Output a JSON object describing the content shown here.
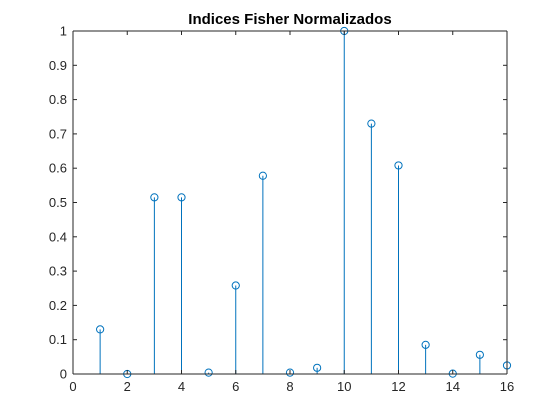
{
  "chart_data": {
    "type": "scatter",
    "style": "stem",
    "title": "Indices Fisher Normalizados",
    "xlabel": "",
    "ylabel": "",
    "xlim": [
      0,
      16
    ],
    "ylim": [
      0,
      1
    ],
    "xticks": [
      0,
      2,
      4,
      6,
      8,
      10,
      12,
      14,
      16
    ],
    "yticks": [
      0,
      0.1,
      0.2,
      0.3,
      0.4,
      0.5,
      0.6,
      0.7,
      0.8,
      0.9,
      1
    ],
    "grid": false,
    "legend": "none",
    "marker": "circle",
    "color": "#0072BD",
    "x": [
      1,
      2,
      3,
      4,
      5,
      6,
      7,
      8,
      9,
      10,
      11,
      12,
      13,
      14,
      15,
      16
    ],
    "y": [
      0.13,
      0.0,
      0.515,
      0.515,
      0.004,
      0.258,
      0.578,
      0.004,
      0.018,
      1.0,
      0.73,
      0.608,
      0.085,
      0.001,
      0.056,
      0.025
    ]
  }
}
